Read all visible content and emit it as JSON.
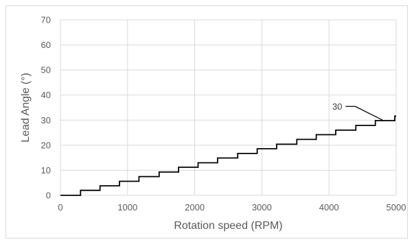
{
  "chart_data": {
    "type": "line",
    "title": "",
    "xlabel": "Rotation speed (RPM)",
    "ylabel": "Lead Angle (°)",
    "xlim": [
      0,
      5000
    ],
    "ylim": [
      0,
      70
    ],
    "x_ticks": [
      "0",
      "1000",
      "2000",
      "3000",
      "4000",
      "5000"
    ],
    "y_ticks": [
      "0",
      "10",
      "20",
      "30",
      "40",
      "50",
      "60",
      "70"
    ],
    "grid": "vertical and horizontal major gridlines",
    "legend": "none",
    "series": [
      {
        "style": "step",
        "color": "#000000",
        "x": [
          0,
          300,
          300,
          590,
          590,
          880,
          880,
          1170,
          1170,
          1470,
          1470,
          1760,
          1760,
          2050,
          2050,
          2340,
          2340,
          2640,
          2640,
          2930,
          2930,
          3220,
          3220,
          3520,
          3520,
          3810,
          3810,
          4100,
          4100,
          4400,
          4400,
          4690,
          4690,
          4980,
          4980,
          5000
        ],
        "y": [
          0,
          0,
          2,
          2,
          3.8,
          3.8,
          5.6,
          5.6,
          7.5,
          7.5,
          9.3,
          9.3,
          11.2,
          11.2,
          13,
          13,
          14.9,
          14.9,
          16.7,
          16.7,
          18.6,
          18.6,
          20.4,
          20.4,
          22.3,
          22.3,
          24.2,
          24.2,
          26,
          26,
          27.9,
          27.9,
          29.8,
          29.8,
          31.6,
          31.6
        ]
      }
    ],
    "annotations": [
      {
        "text": "30",
        "x": 4800,
        "y": 30
      }
    ]
  }
}
